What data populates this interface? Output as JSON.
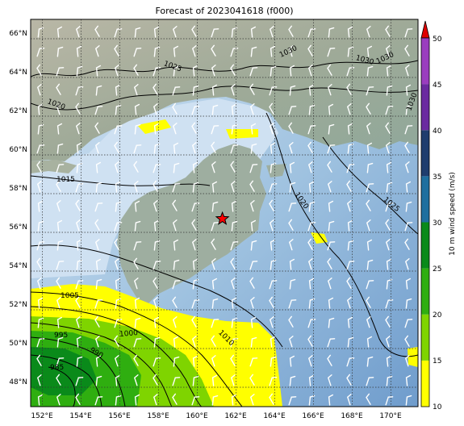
{
  "title": "Forecast of 2023041618 (f000)",
  "colorbar": {
    "label": "10 m wind speed (m/s)",
    "ticks": [
      "10",
      "15",
      "20",
      "25",
      "30",
      "35",
      "40",
      "45",
      "50"
    ],
    "levels": [
      {
        "from": 10,
        "to": 15,
        "color": "#ffff00"
      },
      {
        "from": 15,
        "to": 20,
        "color": "#7fd400"
      },
      {
        "from": 20,
        "to": 25,
        "color": "#2fae10"
      },
      {
        "from": 25,
        "to": 30,
        "color": "#0a8a1a"
      },
      {
        "from": 30,
        "to": 35,
        "color": "#1f6f9f"
      },
      {
        "from": 35,
        "to": 40,
        "color": "#1f3d6e"
      },
      {
        "from": 40,
        "to": 45,
        "color": "#6a2aa0"
      },
      {
        "from": 45,
        "to": 50,
        "color": "#9a3dbf"
      }
    ],
    "extend_color": "#e00000"
  },
  "lat_labels": [
    "66°N",
    "64°N",
    "62°N",
    "60°N",
    "58°N",
    "56°N",
    "54°N",
    "52°N",
    "50°N",
    "48°N"
  ],
  "lon_labels": [
    "152°E",
    "154°E",
    "156°E",
    "158°E",
    "160°E",
    "162°E",
    "164°E",
    "166°E",
    "168°E",
    "170°E"
  ],
  "contour_labels": [
    "1030",
    "1030",
    "1030",
    "1025",
    "1030",
    "1020",
    "1015",
    "1020",
    "1025",
    "1005",
    "1000",
    "995",
    "990",
    "985",
    "1010"
  ],
  "marker": {
    "symbol": "star",
    "color": "#ff0000",
    "lon": 161.3,
    "lat": 56.7
  }
}
